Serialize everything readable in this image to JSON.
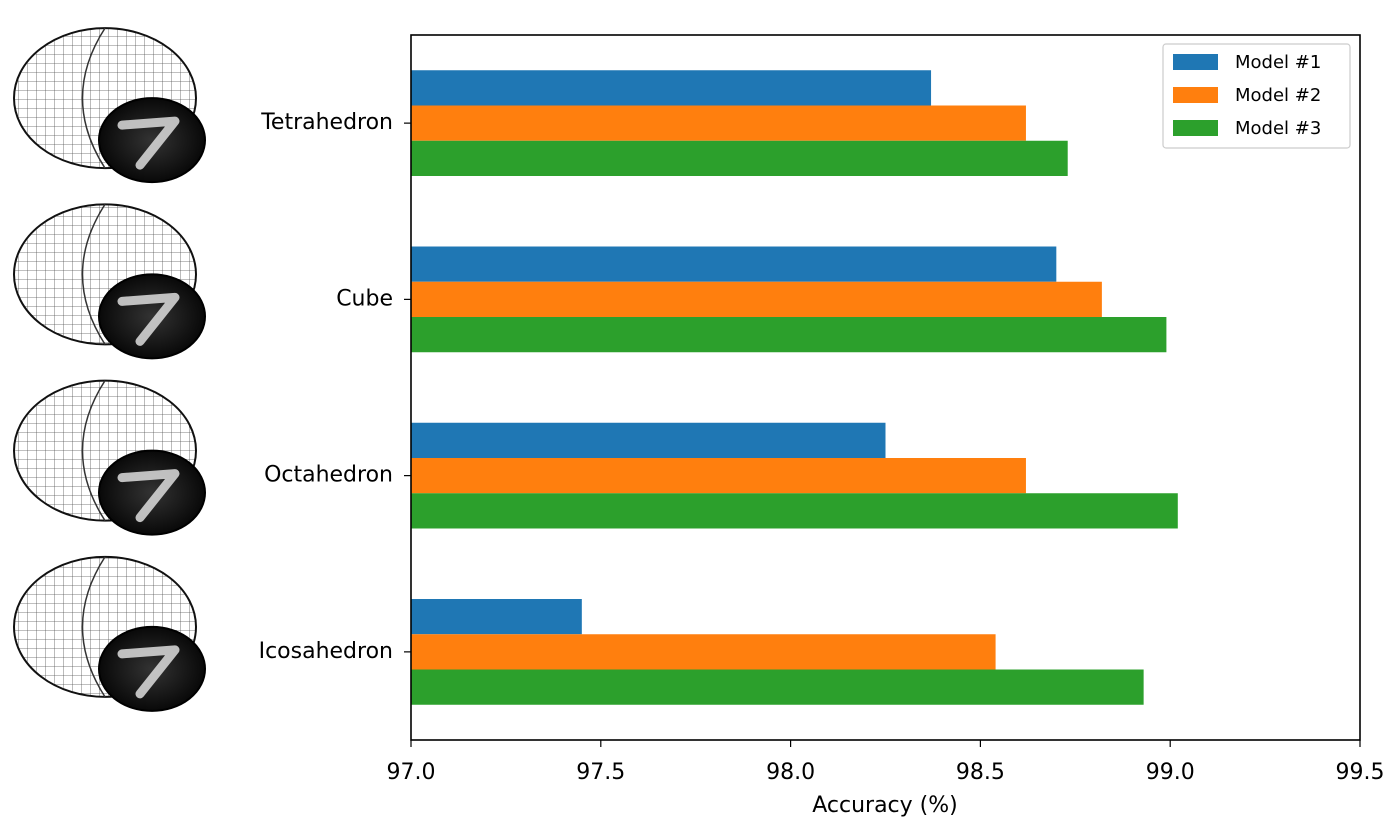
{
  "chart_data": {
    "type": "barh",
    "categories": [
      "Tetrahedron",
      "Cube",
      "Octahedron",
      "Icosahedron"
    ],
    "series": [
      {
        "name": "Model #1",
        "color": "#1f77b4",
        "values": [
          98.37,
          98.7,
          98.25,
          97.45
        ]
      },
      {
        "name": "Model #2",
        "color": "#ff7f0e",
        "values": [
          98.62,
          98.82,
          98.62,
          98.54
        ]
      },
      {
        "name": "Model #3",
        "color": "#2ca02c",
        "values": [
          98.73,
          98.99,
          99.02,
          98.93
        ]
      }
    ],
    "xlabel": "Accuracy (%)",
    "xlim": [
      97.0,
      99.5
    ],
    "xticks": [
      {
        "value": 97.0,
        "label": "97.0"
      },
      97.5,
      {
        "value": 98.0,
        "label": "98.0"
      },
      98.5,
      {
        "value": 99.0,
        "label": "99.0"
      },
      99.5
    ],
    "legend": "upper right"
  }
}
